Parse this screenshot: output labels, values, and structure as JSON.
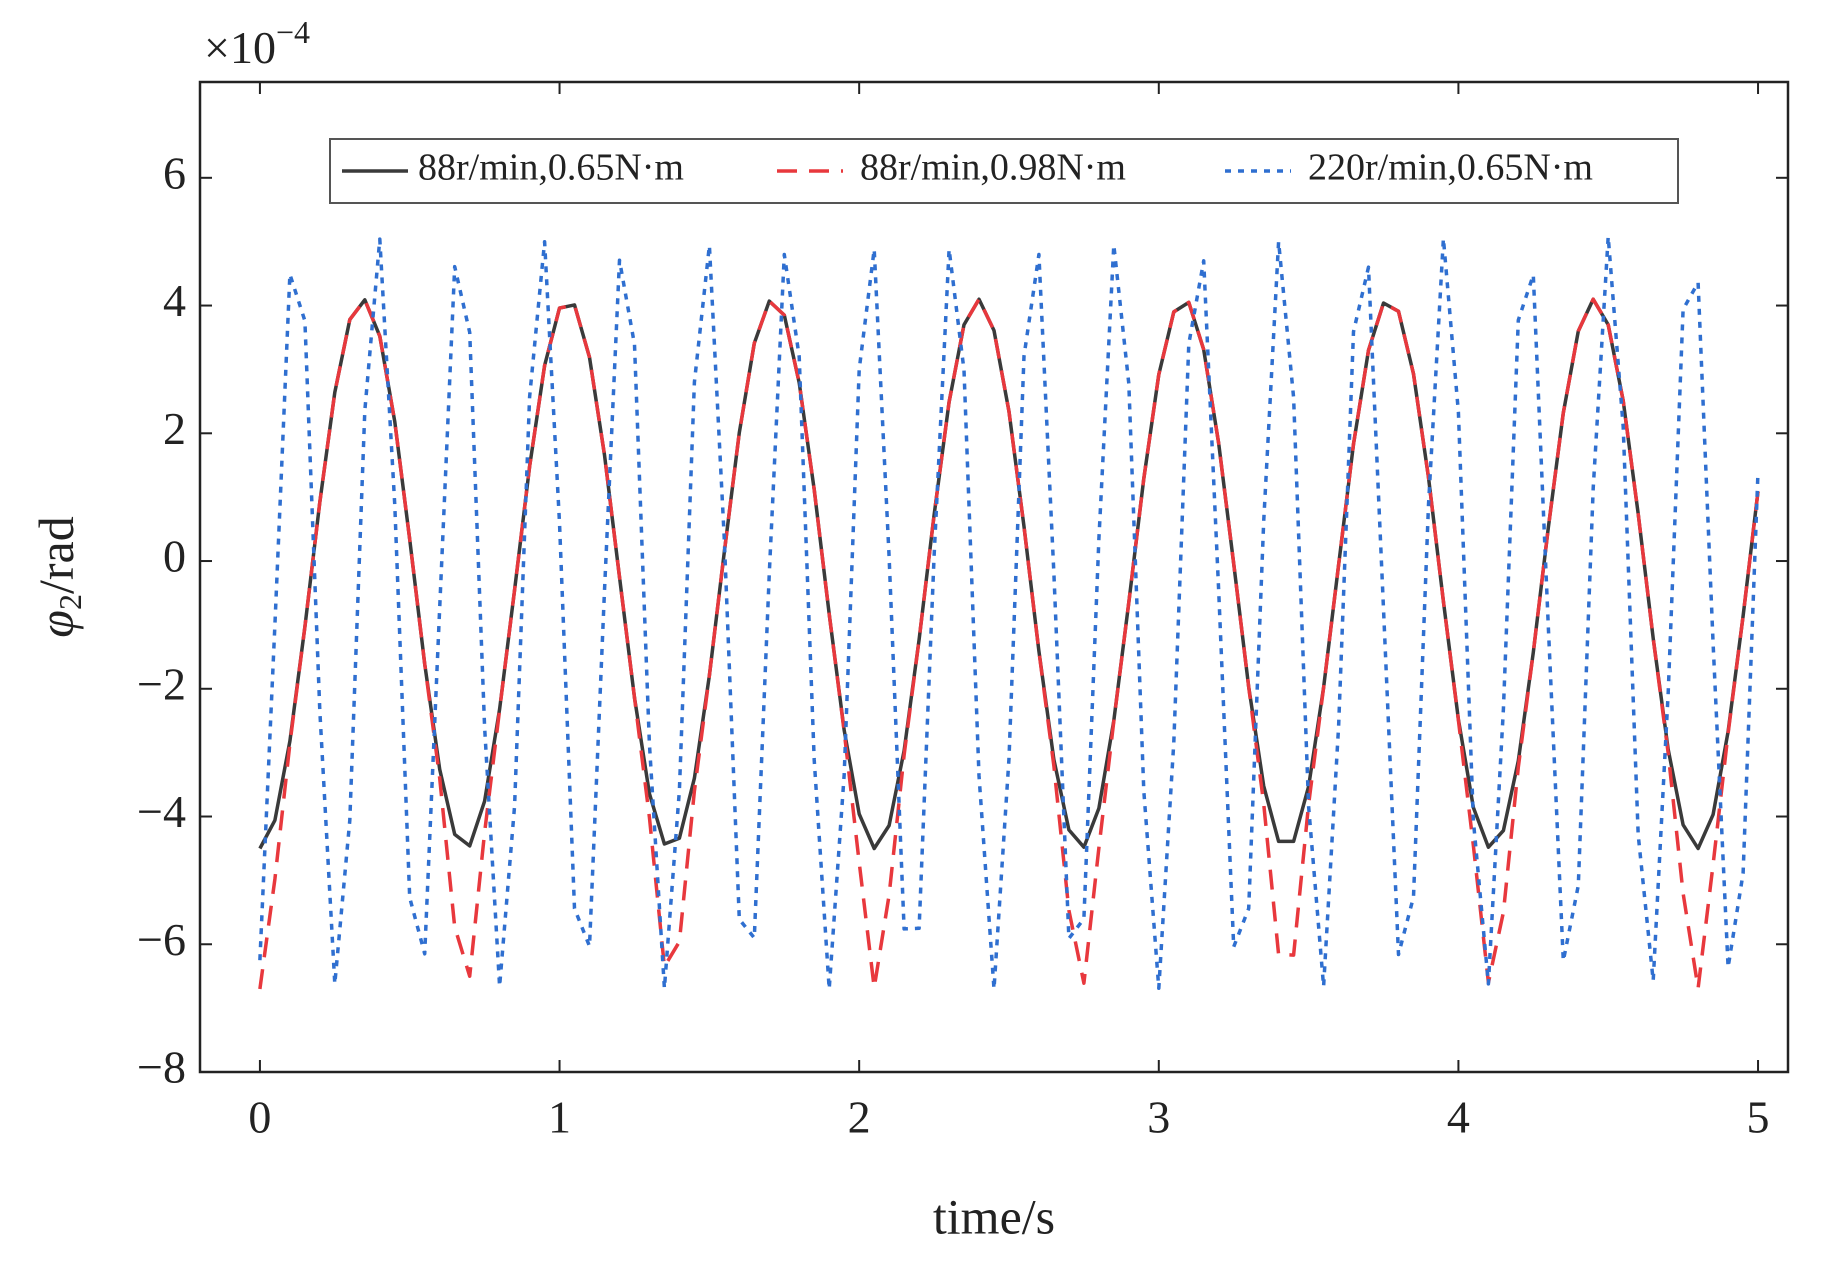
{
  "chart_data": {
    "type": "line",
    "scale_label": {
      "base": "×10",
      "exponent": "−4"
    },
    "xlabel": "time/s",
    "ylabel": [
      "φ",
      "2",
      "/rad"
    ],
    "xlim": [
      -0.2,
      5.1
    ],
    "ylim": [
      -8,
      7.5
    ],
    "xticks": [
      0,
      1,
      2,
      3,
      4,
      5
    ],
    "yticks": [
      {
        "value": -8,
        "label": "−8"
      },
      {
        "value": -6,
        "label": "−6"
      },
      {
        "value": -4,
        "label": "−4"
      },
      {
        "value": -2,
        "label": "−2"
      },
      0,
      2,
      4,
      6
    ],
    "grid": false,
    "legend": "top",
    "x": [
      0,
      0.05,
      0.1,
      0.15,
      0.2,
      0.25,
      0.3,
      0.35,
      0.4,
      0.45,
      0.5,
      0.55,
      0.6,
      0.65,
      0.7,
      0.75,
      0.8,
      0.85,
      0.9,
      0.95,
      1,
      1.05,
      1.1,
      1.15,
      1.2,
      1.25,
      1.3,
      1.35,
      1.4,
      1.45,
      1.5,
      1.55,
      1.6,
      1.65,
      1.7,
      1.75,
      1.8,
      1.85,
      1.9,
      1.95,
      2,
      2.05,
      2.1,
      2.15,
      2.2,
      2.25,
      2.3,
      2.35,
      2.4,
      2.45,
      2.5,
      2.55,
      2.6,
      2.65,
      2.7,
      2.75,
      2.8,
      2.85,
      2.9,
      2.95,
      3,
      3.05,
      3.1,
      3.15,
      3.2,
      3.25,
      3.3,
      3.35,
      3.4,
      3.45,
      3.5,
      3.55,
      3.6,
      3.65,
      3.7,
      3.75,
      3.8,
      3.85,
      3.9,
      3.95,
      4,
      4.05,
      4.1,
      4.15,
      4.2,
      4.25,
      4.3,
      4.35,
      4.4,
      4.45,
      4.5,
      4.55,
      4.6,
      4.65,
      4.7,
      4.75,
      4.8,
      4.85,
      4.9,
      4.95,
      5
    ],
    "series": [
      {
        "name": "88r/min,0.65N·m",
        "color": "#3a3a3a",
        "dash": "none",
        "values": [
          -4.5,
          -4.06,
          -2.82,
          -1.03,
          0.92,
          2.64,
          3.78,
          4.09,
          3.52,
          2.18,
          0.34,
          -1.61,
          -3.26,
          -4.28,
          -4.46,
          -3.76,
          -2.32,
          -0.45,
          1.48,
          3.06,
          3.96,
          4.01,
          3.19,
          1.66,
          -0.25,
          -2.14,
          -3.64,
          -4.43,
          -4.34,
          -3.4,
          -1.79,
          0.14,
          2.01,
          3.41,
          4.07,
          3.85,
          2.79,
          1.12,
          -0.83,
          -2.65,
          -3.96,
          -4.5,
          -4.14,
          -2.97,
          -1.23,
          0.72,
          2.49,
          3.7,
          4.1,
          3.61,
          2.34,
          0.54,
          -1.41,
          -3.11,
          -4.21,
          -4.48,
          -3.87,
          -2.5,
          -0.65,
          1.29,
          2.92,
          3.9,
          4.05,
          3.31,
          1.84,
          -0.04,
          -1.97,
          -3.52,
          -4.39,
          -4.39,
          -3.53,
          -1.98,
          -0.06,
          1.83,
          3.3,
          4.04,
          3.91,
          2.93,
          1.31,
          -0.63,
          -2.48,
          -3.86,
          -4.48,
          -4.22,
          -3.13,
          -1.43,
          0.52,
          2.32,
          3.6,
          4.1,
          3.7,
          2.51,
          0.74,
          -1.21,
          -2.95,
          -4.13,
          -4.5,
          -3.97,
          -2.67,
          -0.86,
          1.09
        ]
      },
      {
        "name": "88r/min,0.98N·m",
        "color": "#e8383d",
        "dash": "20,12",
        "values": [
          -6.7,
          -4.98,
          -2.86,
          -1.03,
          0.92,
          2.64,
          3.78,
          4.09,
          3.52,
          2.18,
          0.34,
          -1.61,
          -3.4,
          -5.73,
          -6.5,
          -4.25,
          -2.33,
          -0.45,
          1.48,
          3.06,
          3.96,
          4.01,
          3.19,
          1.66,
          -0.25,
          -2.14,
          -4.01,
          -6.35,
          -5.96,
          -3.6,
          -1.79,
          0.14,
          2.01,
          3.41,
          4.07,
          3.85,
          2.79,
          1.12,
          -0.83,
          -2.67,
          -4.72,
          -6.68,
          -5.23,
          -3.04,
          -1.23,
          0.72,
          2.49,
          3.7,
          4.1,
          3.61,
          2.34,
          0.54,
          -1.41,
          -3.21,
          -5.47,
          -6.61,
          -4.49,
          -2.51,
          -0.65,
          1.29,
          2.92,
          3.9,
          4.05,
          3.31,
          1.84,
          -0.04,
          -1.97,
          -3.8,
          -6.16,
          -6.17,
          -3.81,
          -1.98,
          -0.06,
          1.83,
          3.3,
          4.04,
          3.91,
          2.93,
          1.31,
          -0.63,
          -2.49,
          -4.46,
          -6.6,
          -5.5,
          -3.23,
          -1.43,
          0.52,
          2.32,
          3.6,
          4.1,
          3.7,
          2.51,
          0.74,
          -1.21,
          -3.01,
          -5.2,
          -6.69,
          -4.75,
          -2.7,
          -0.86,
          1.09
        ]
      },
      {
        "name": "220r/min,0.65N·m",
        "color": "#2f6fd0",
        "dash": "6,7",
        "values": [
          -6.25,
          -1.0,
          4.49,
          3.76,
          -2.34,
          -6.62,
          -4.06,
          2.35,
          5.04,
          0.87,
          -5.27,
          -6.15,
          -0.73,
          4.61,
          3.58,
          -2.6,
          -6.66,
          -3.83,
          2.57,
          5.0,
          0.6,
          -5.44,
          -6.03,
          -0.46,
          4.71,
          3.39,
          -2.86,
          -6.69,
          -3.59,
          2.8,
          4.94,
          0.34,
          -5.61,
          -5.9,
          -0.19,
          4.8,
          3.2,
          -3.11,
          -6.7,
          -3.34,
          3.0,
          4.88,
          0.07,
          -5.76,
          -5.75,
          0.08,
          4.88,
          2.99,
          -3.36,
          -6.7,
          -3.09,
          3.21,
          4.8,
          -0.2,
          -5.91,
          -5.6,
          0.35,
          4.95,
          2.78,
          -3.6,
          -6.69,
          -2.84,
          3.4,
          4.7,
          -0.47,
          -6.04,
          -5.44,
          0.62,
          5.0,
          2.56,
          -3.84,
          -6.66,
          -2.59,
          3.59,
          4.6,
          -0.75,
          -6.16,
          -5.26,
          0.88,
          5.05,
          2.33,
          -4.07,
          -6.62,
          -2.32,
          3.77,
          4.48,
          -1.02,
          -6.26,
          -5.08,
          1.14,
          5.08,
          2.1,
          -4.29,
          -6.57,
          -2.06,
          3.94,
          4.36,
          -1.29,
          -6.36,
          -4.89,
          1.4
        ]
      }
    ]
  }
}
